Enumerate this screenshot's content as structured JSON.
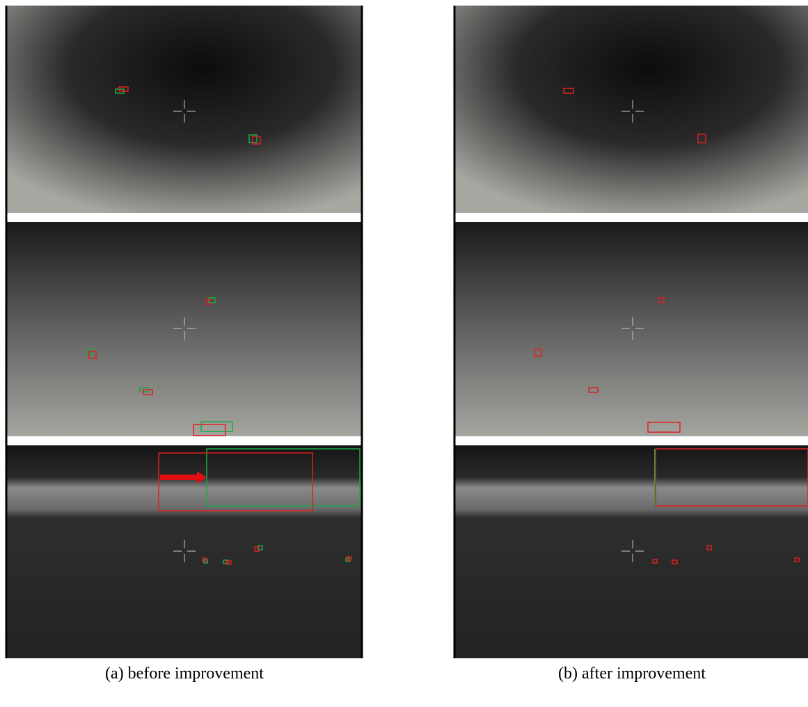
{
  "captions": [
    "(a) before improvement",
    "(b) after improvement"
  ]
}
